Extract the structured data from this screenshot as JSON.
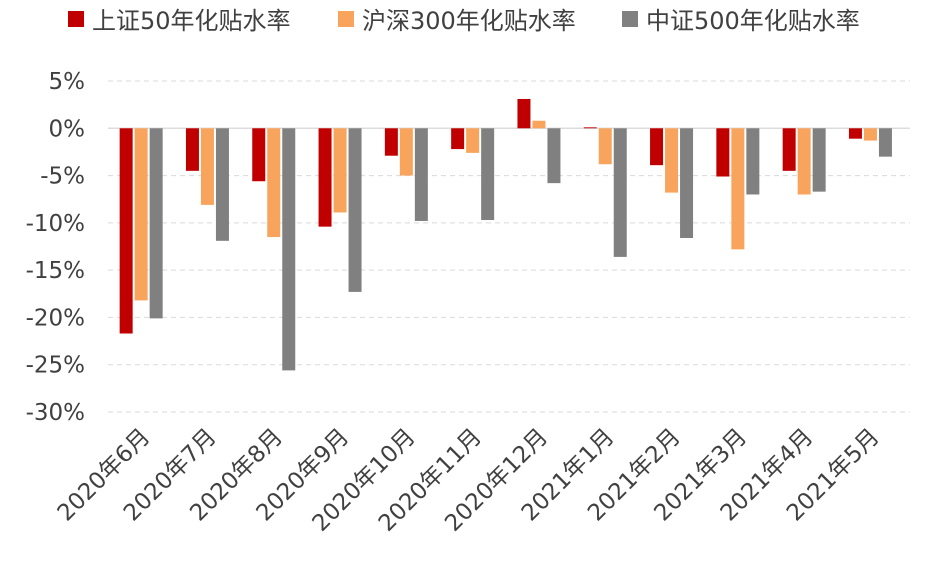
{
  "chart_data": {
    "type": "bar",
    "categories": [
      "2020年6月",
      "2020年7月",
      "2020年8月",
      "2020年9月",
      "2020年10月",
      "2020年11月",
      "2020年12月",
      "2021年1月",
      "2021年2月",
      "2021年3月",
      "2021年4月",
      "2021年5月"
    ],
    "series": [
      {
        "name": "上证50年化贴水率",
        "color": "#C00000",
        "values": [
          -21.7,
          -4.5,
          -5.6,
          -10.4,
          -2.9,
          -2.2,
          3.1,
          0.1,
          -3.9,
          -5.1,
          -4.5,
          -1.1
        ]
      },
      {
        "name": "沪深300年化贴水率",
        "color": "#F9A45C",
        "values": [
          -18.2,
          -8.1,
          -11.5,
          -8.9,
          -5.0,
          -2.6,
          0.8,
          -3.8,
          -6.8,
          -12.8,
          -7.0,
          -1.3
        ]
      },
      {
        "name": "中证500年化贴水率",
        "color": "#808080",
        "values": [
          -20.1,
          -11.9,
          -25.6,
          -17.3,
          -9.8,
          -9.7,
          -5.8,
          -13.6,
          -11.6,
          -7.0,
          -6.7,
          -3.0
        ]
      }
    ],
    "y_ticks": [
      5,
      0,
      -5,
      -10,
      -15,
      -20,
      -25,
      -30
    ],
    "y_tick_labels": [
      "5%",
      "0%",
      "-5%",
      "-10%",
      "-15%",
      "-20%",
      "-25%",
      "-30%"
    ],
    "ylim": [
      -30,
      5
    ],
    "grid": true,
    "legend_position": "top",
    "title": "",
    "xlabel": "",
    "ylabel": ""
  }
}
